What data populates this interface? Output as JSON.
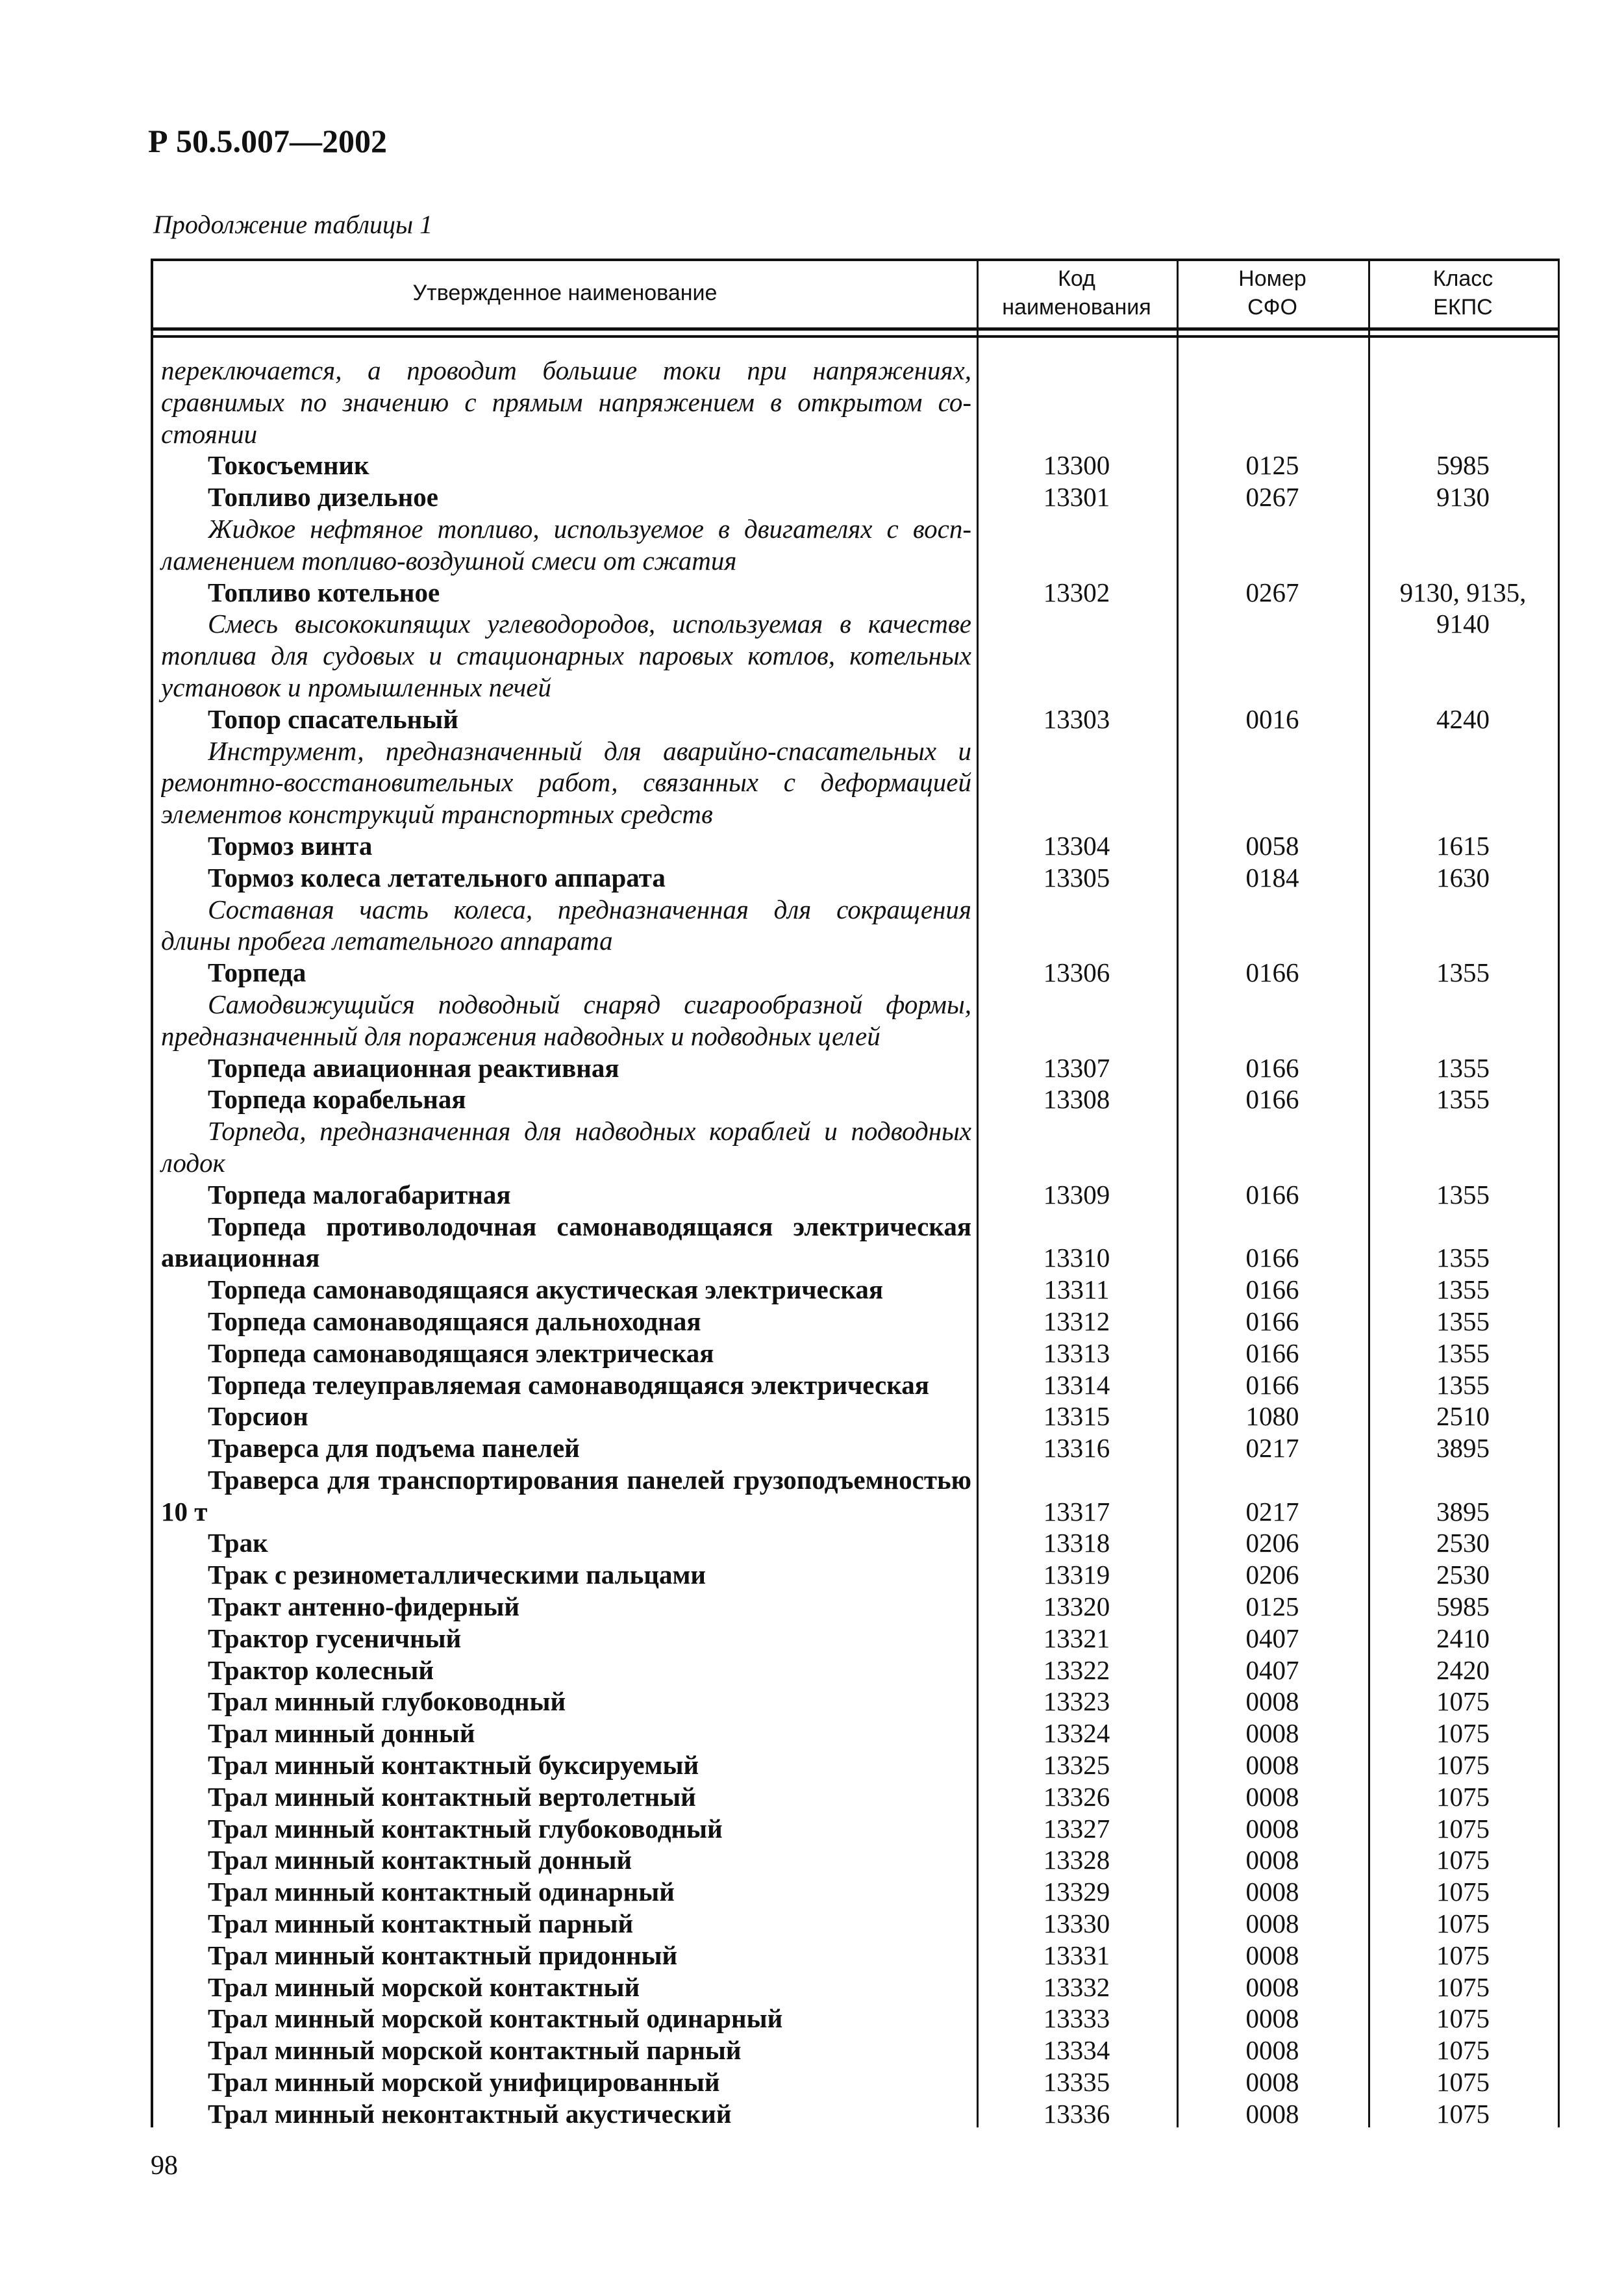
{
  "document_code": "Р 50.5.007—2002",
  "table_caption": "Продолжение таблицы 1",
  "columns": [
    "Утвержденное наименование",
    "Код\nнаименования",
    "Номер\nСФО",
    "Класс\nЕКПС"
  ],
  "rows": [
    {
      "t": "переключается, а проводит большие токи при напряжениях,",
      "s": "i"
    },
    {
      "t": "сравнимых по значению с прямым напряжением в открытом со-",
      "s": "i"
    },
    {
      "t": "стоянии",
      "s": "i"
    },
    {
      "t": "Токосъемник",
      "s": "b",
      "ind": true,
      "code": "13300",
      "sfo": "0125",
      "ekps": "5985"
    },
    {
      "t": "Топливо дизельное",
      "s": "b",
      "ind": true,
      "code": "13301",
      "sfo": "0267",
      "ekps": "9130"
    },
    {
      "t": "Жидкое нефтяное топливо, используемое в двигателях с восп-",
      "s": "i",
      "ind": true
    },
    {
      "t": "ламенением топливо-воздушной смеси от сжатия",
      "s": "i"
    },
    {
      "t": "Топливо котельное",
      "s": "b",
      "ind": true,
      "code": "13302",
      "sfo": "0267",
      "ekps": "9130, 9135,"
    },
    {
      "t": "Смесь высококипящих углеводородов, используемая в качестве",
      "s": "i",
      "ind": true,
      "ekps": "9140"
    },
    {
      "t": "топлива для судовых и стационарных паровых котлов, котельных",
      "s": "i"
    },
    {
      "t": "установок и промышленных печей",
      "s": "i"
    },
    {
      "t": "Топор спасательный",
      "s": "b",
      "ind": true,
      "code": "13303",
      "sfo": "0016",
      "ekps": "4240"
    },
    {
      "t": "Инструмент, предназначенный для аварийно-спасательных и",
      "s": "i",
      "ind": true
    },
    {
      "t": "ремонтно-восстановительных работ, связанных с деформацией",
      "s": "i"
    },
    {
      "t": "элементов конструкций транспортных средств",
      "s": "i"
    },
    {
      "t": "Тормоз винта",
      "s": "b",
      "ind": true,
      "code": "13304",
      "sfo": "0058",
      "ekps": "1615"
    },
    {
      "t": "Тормоз колеса летательного аппарата",
      "s": "b",
      "ind": true,
      "code": "13305",
      "sfo": "0184",
      "ekps": "1630"
    },
    {
      "t": "Составная часть колеса, предназначенная для сокращения",
      "s": "i",
      "ind": true
    },
    {
      "t": "длины пробега летательного аппарата",
      "s": "i"
    },
    {
      "t": "Торпеда",
      "s": "b",
      "ind": true,
      "code": "13306",
      "sfo": "0166",
      "ekps": "1355"
    },
    {
      "t": "Самодвижущийся подводный снаряд сигарообразной формы,",
      "s": "i",
      "ind": true
    },
    {
      "t": "предназначенный для поражения надводных и подводных целей",
      "s": "i"
    },
    {
      "t": "Торпеда авиационная реактивная",
      "s": "b",
      "ind": true,
      "code": "13307",
      "sfo": "0166",
      "ekps": "1355"
    },
    {
      "t": "Торпеда корабельная",
      "s": "b",
      "ind": true,
      "code": "13308",
      "sfo": "0166",
      "ekps": "1355"
    },
    {
      "t": "Торпеда, предназначенная для надводных кораблей и подводных",
      "s": "i",
      "ind": true
    },
    {
      "t": "лодок",
      "s": "i"
    },
    {
      "t": "Торпеда малогабаритная",
      "s": "b",
      "ind": true,
      "code": "13309",
      "sfo": "0166",
      "ekps": "1355"
    },
    {
      "t": "Торпеда противолодочная самонаводящаяся электрическая",
      "s": "b",
      "ind": true
    },
    {
      "t": "авиационная",
      "s": "b",
      "code": "13310",
      "sfo": "0166",
      "ekps": "1355"
    },
    {
      "t": "Торпеда самонаводящаяся акустическая электрическая",
      "s": "b",
      "ind": true,
      "code": "13311",
      "sfo": "0166",
      "ekps": "1355"
    },
    {
      "t": "Торпеда самонаводящаяся дальноходная",
      "s": "b",
      "ind": true,
      "code": "13312",
      "sfo": "0166",
      "ekps": "1355"
    },
    {
      "t": "Торпеда самонаводящаяся электрическая",
      "s": "b",
      "ind": true,
      "code": "13313",
      "sfo": "0166",
      "ekps": "1355"
    },
    {
      "t": "Торпеда телеуправляемая самонаводящаяся электрическая",
      "s": "b",
      "ind": true,
      "code": "13314",
      "sfo": "0166",
      "ekps": "1355"
    },
    {
      "t": "Торсион",
      "s": "b",
      "ind": true,
      "code": "13315",
      "sfo": "1080",
      "ekps": "2510"
    },
    {
      "t": "Траверса для подъема панелей",
      "s": "b",
      "ind": true,
      "code": "13316",
      "sfo": "0217",
      "ekps": "3895"
    },
    {
      "t": "Траверса для транспортирования панелей грузоподъемностью",
      "s": "b",
      "ind": true
    },
    {
      "t": "10 т",
      "s": "b",
      "code": "13317",
      "sfo": "0217",
      "ekps": "3895"
    },
    {
      "t": "Трак",
      "s": "b",
      "ind": true,
      "code": "13318",
      "sfo": "0206",
      "ekps": "2530"
    },
    {
      "t": "Трак с резинометаллическими пальцами",
      "s": "b",
      "ind": true,
      "code": "13319",
      "sfo": "0206",
      "ekps": "2530"
    },
    {
      "t": "Тракт антенно-фидерный",
      "s": "b",
      "ind": true,
      "code": "13320",
      "sfo": "0125",
      "ekps": "5985"
    },
    {
      "t": "Трактор гусеничный",
      "s": "b",
      "ind": true,
      "code": "13321",
      "sfo": "0407",
      "ekps": "2410"
    },
    {
      "t": "Трактор колесный",
      "s": "b",
      "ind": true,
      "code": "13322",
      "sfo": "0407",
      "ekps": "2420"
    },
    {
      "t": "Трал минный глубоководный",
      "s": "b",
      "ind": true,
      "code": "13323",
      "sfo": "0008",
      "ekps": "1075"
    },
    {
      "t": "Трал минный донный",
      "s": "b",
      "ind": true,
      "code": "13324",
      "sfo": "0008",
      "ekps": "1075"
    },
    {
      "t": "Трал минный контактный буксируемый",
      "s": "b",
      "ind": true,
      "code": "13325",
      "sfo": "0008",
      "ekps": "1075"
    },
    {
      "t": "Трал минный контактный вертолетный",
      "s": "b",
      "ind": true,
      "code": "13326",
      "sfo": "0008",
      "ekps": "1075"
    },
    {
      "t": "Трал минный контактный глубоководный",
      "s": "b",
      "ind": true,
      "code": "13327",
      "sfo": "0008",
      "ekps": "1075"
    },
    {
      "t": "Трал минный контактный донный",
      "s": "b",
      "ind": true,
      "code": "13328",
      "sfo": "0008",
      "ekps": "1075"
    },
    {
      "t": "Трал минный контактный одинарный",
      "s": "b",
      "ind": true,
      "code": "13329",
      "sfo": "0008",
      "ekps": "1075"
    },
    {
      "t": "Трал минный контактный парный",
      "s": "b",
      "ind": true,
      "code": "13330",
      "sfo": "0008",
      "ekps": "1075"
    },
    {
      "t": "Трал минный контактный придонный",
      "s": "b",
      "ind": true,
      "code": "13331",
      "sfo": "0008",
      "ekps": "1075"
    },
    {
      "t": "Трал минный морской контактный",
      "s": "b",
      "ind": true,
      "code": "13332",
      "sfo": "0008",
      "ekps": "1075"
    },
    {
      "t": "Трал минный морской контактный одинарный",
      "s": "b",
      "ind": true,
      "code": "13333",
      "sfo": "0008",
      "ekps": "1075"
    },
    {
      "t": "Трал минный морской контактный парный",
      "s": "b",
      "ind": true,
      "code": "13334",
      "sfo": "0008",
      "ekps": "1075"
    },
    {
      "t": "Трал минный морской унифицированный",
      "s": "b",
      "ind": true,
      "code": "13335",
      "sfo": "0008",
      "ekps": "1075"
    },
    {
      "t": "Трал минный неконтактный акустический",
      "s": "b",
      "ind": true,
      "code": "13336",
      "sfo": "0008",
      "ekps": "1075"
    }
  ],
  "page_number": "98"
}
